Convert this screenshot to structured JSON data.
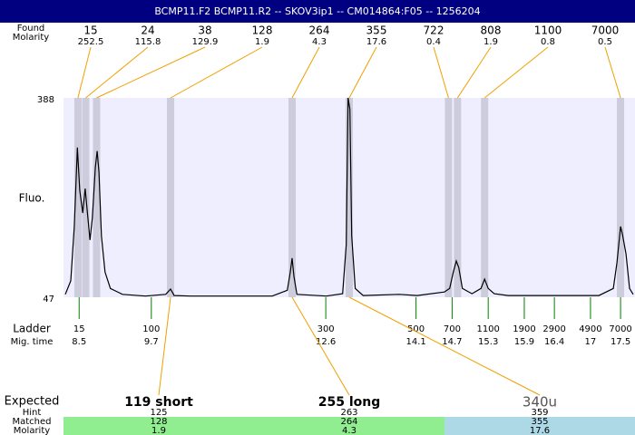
{
  "chart_data": {
    "type": "line",
    "title": "BCMP11.F2  BCMP11.R2 -- SKOV3ip1 -- CM014864:F05 -- 1256204",
    "y_label": "Fluo.",
    "ylim": [
      47,
      388
    ],
    "yticks": [
      388,
      47
    ],
    "xlim": [
      8.24,
      17.74
    ],
    "x": [
      8.27,
      8.36,
      8.42,
      8.47,
      8.51,
      8.56,
      8.6,
      8.63,
      8.68,
      8.72,
      8.77,
      8.8,
      8.83,
      8.87,
      8.93,
      9.02,
      9.22,
      9.6,
      9.94,
      10.02,
      10.08,
      10.35,
      11.71,
      11.96,
      12.01,
      12.04,
      12.07,
      12.12,
      12.61,
      12.88,
      12.94,
      12.97,
      13.0,
      13.03,
      13.09,
      13.22,
      13.82,
      14.12,
      14.57,
      14.66,
      14.72,
      14.77,
      14.81,
      14.87,
      15.03,
      15.18,
      15.24,
      15.3,
      15.4,
      15.63,
      17.14,
      17.38,
      17.44,
      17.5,
      17.53,
      17.59,
      17.65,
      17.71
    ],
    "values": [
      52,
      75,
      168,
      303,
      230,
      191,
      233,
      199,
      145,
      183,
      269,
      297,
      261,
      152,
      90,
      62,
      52,
      49,
      52,
      61,
      50,
      49,
      49,
      59,
      90,
      114,
      83,
      52,
      49,
      53,
      137,
      388,
      369,
      152,
      62,
      50,
      52,
      50,
      56,
      62,
      90,
      109,
      98,
      62,
      53,
      62,
      78,
      62,
      53,
      50,
      50,
      62,
      106,
      168,
      155,
      121,
      62,
      52
    ],
    "color": "#000000",
    "peaks": {
      "size_label": "Found",
      "molarity_label": "Molarity",
      "sizes": [
        15,
        24,
        38,
        128,
        264,
        355,
        722,
        808,
        1100,
        7000
      ],
      "molarity": [
        252.5,
        115.8,
        129.9,
        1.9,
        4.3,
        17.6,
        0.4,
        1.9,
        0.8,
        0.5
      ],
      "times": [
        8.48,
        8.61,
        8.79,
        10.02,
        12.04,
        12.99,
        14.64,
        14.79,
        15.24,
        17.5
      ]
    },
    "ladder": {
      "label": "Ladder",
      "time_label": "Mig. time",
      "sizes": [
        15,
        100,
        300,
        500,
        700,
        1100,
        1900,
        2900,
        4900,
        7000
      ],
      "times": [
        8.5,
        9.7,
        12.6,
        14.1,
        14.7,
        15.3,
        15.9,
        16.4,
        17,
        17.5
      ]
    },
    "table_labels": {
      "expected": "Expected",
      "hint": "Hint",
      "matched": "Matched",
      "molarity": "Molarity"
    },
    "expected": [
      {
        "label": "119 short",
        "hint": 125,
        "matched": 128,
        "molarity": 1.9,
        "color": "#90ee90",
        "bold": true
      },
      {
        "label": "255 long",
        "hint": 263,
        "matched": 264,
        "molarity": 4.3,
        "color": "#90ee90",
        "bold": true
      },
      {
        "label": "340u",
        "hint": 359,
        "matched": 355,
        "molarity": 17.6,
        "color": "#add8e6",
        "bold": false
      }
    ]
  }
}
